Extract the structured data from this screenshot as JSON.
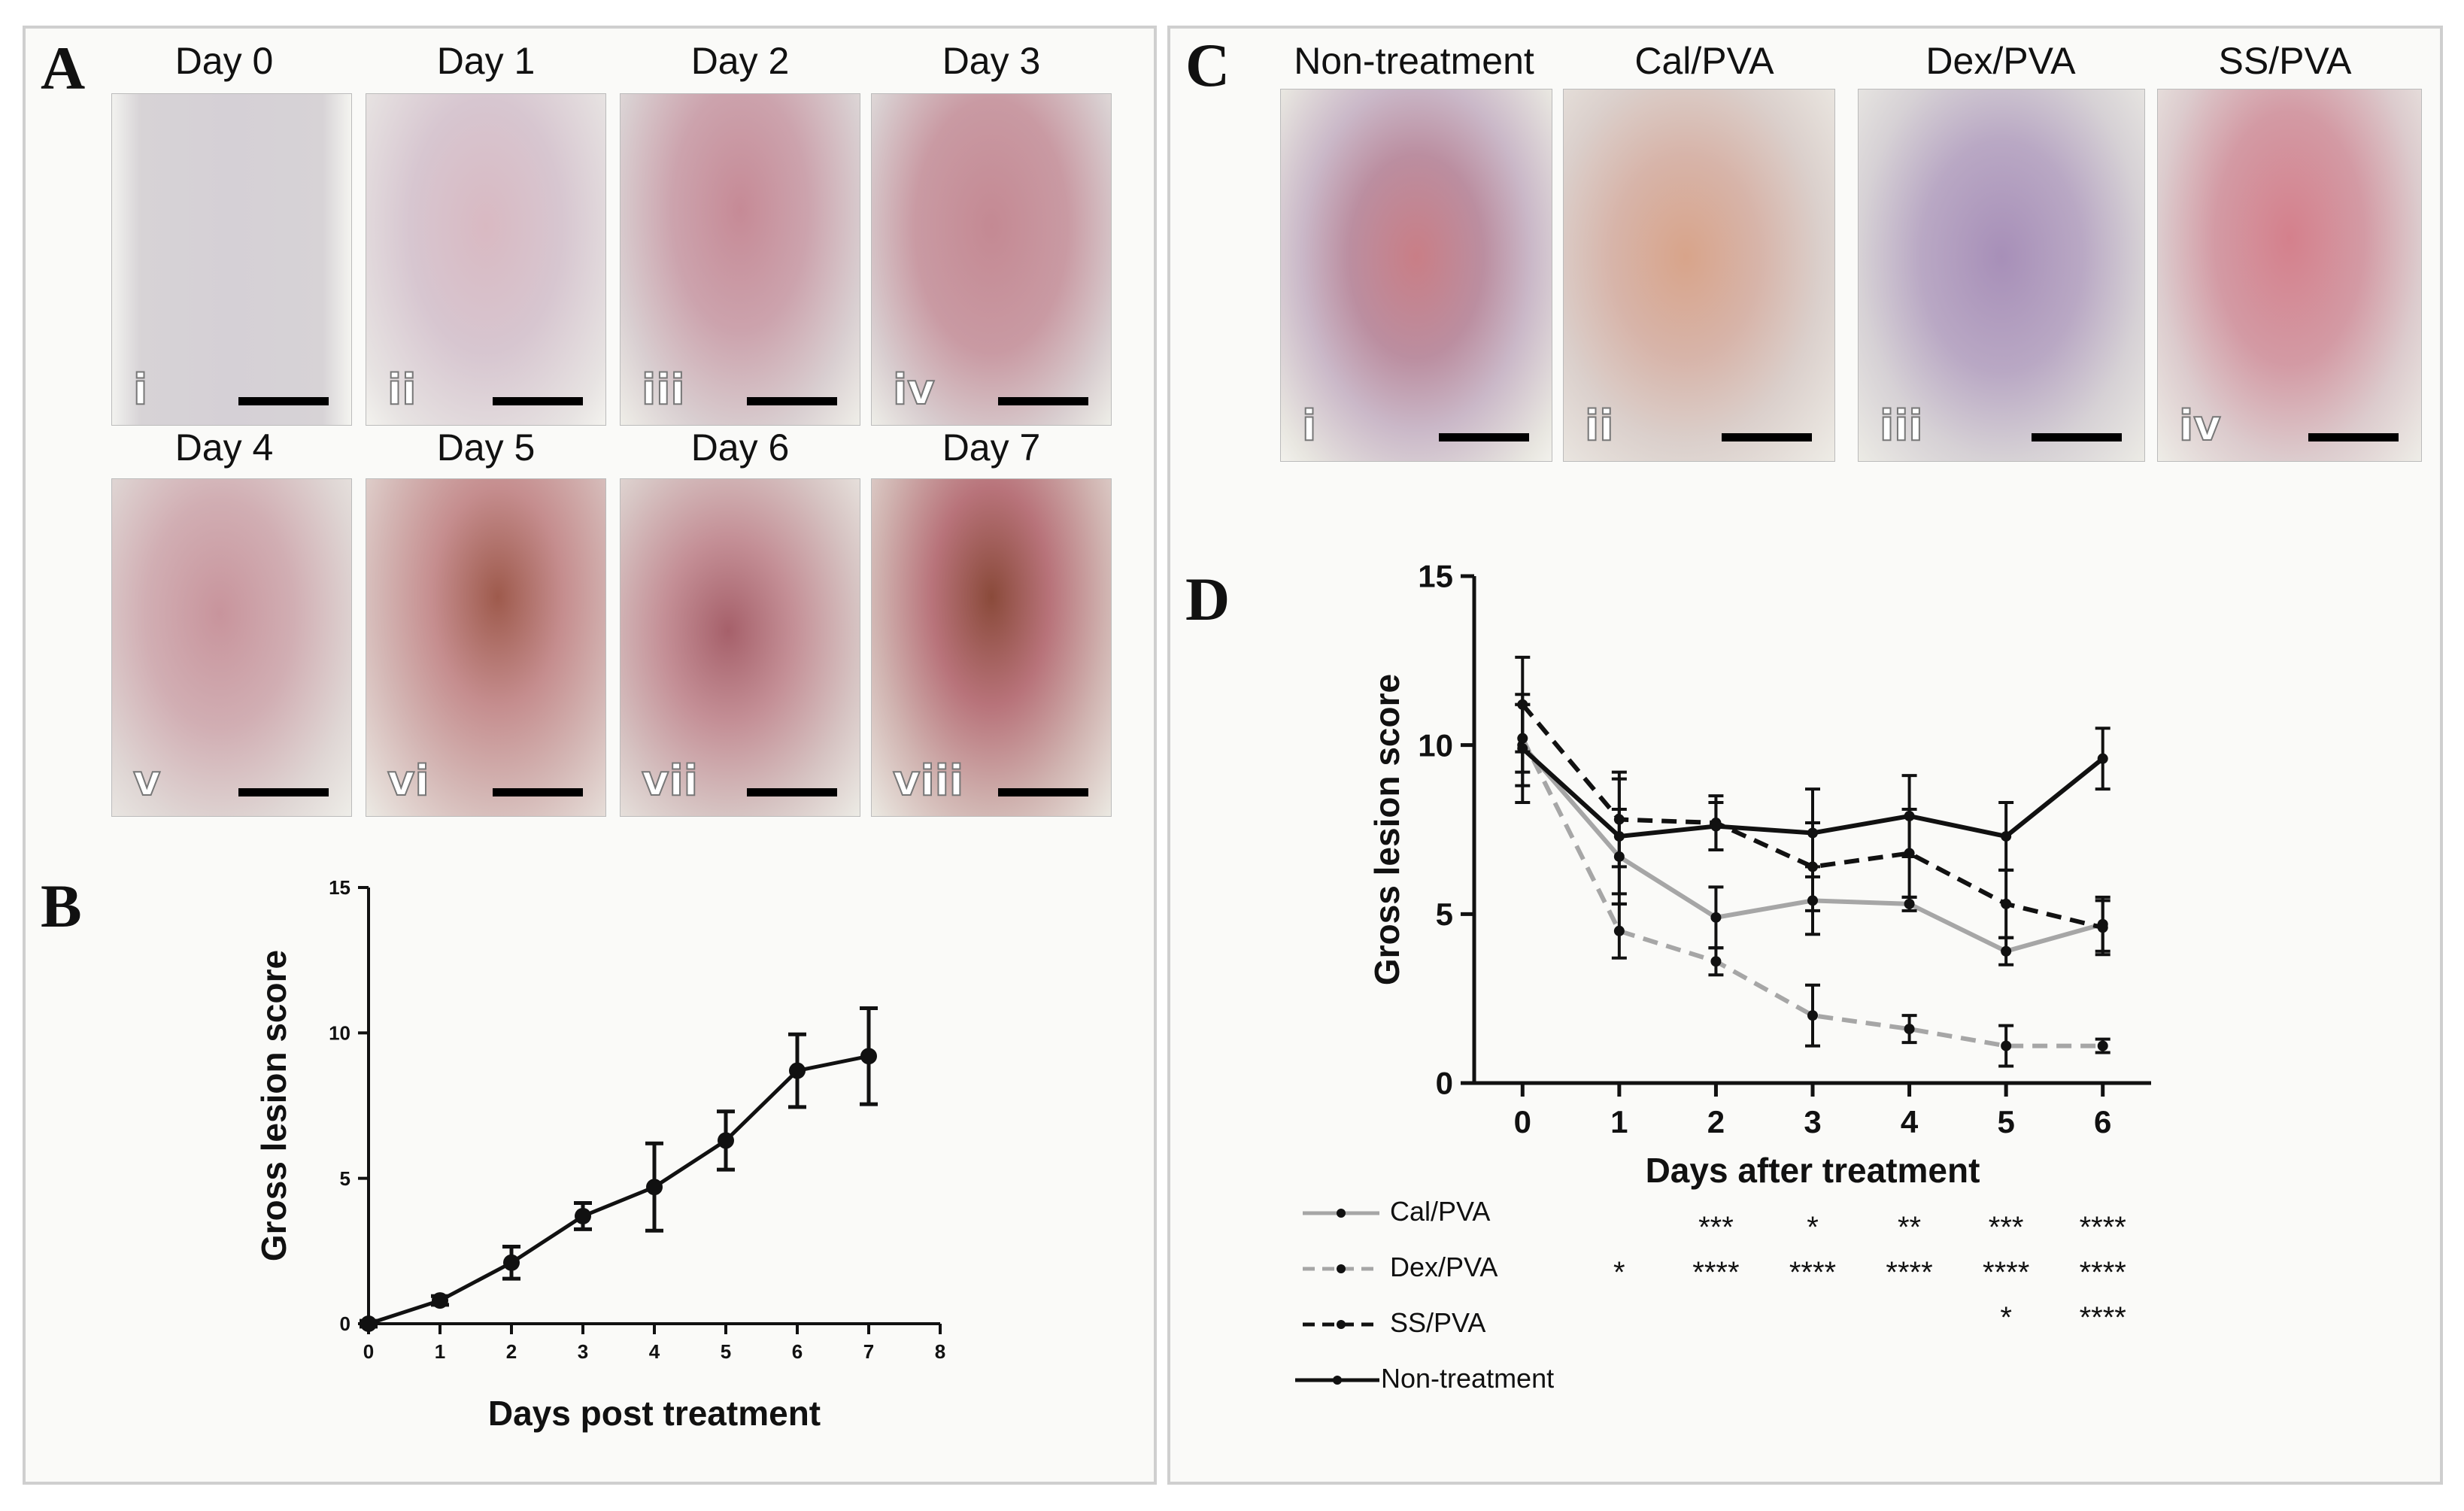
{
  "panels": {
    "A": {
      "letter": "A",
      "photos": [
        {
          "day": "Day 0",
          "roman": "i"
        },
        {
          "day": "Day 1",
          "roman": "ii"
        },
        {
          "day": "Day 2",
          "roman": "iii"
        },
        {
          "day": "Day 3",
          "roman": "iv"
        },
        {
          "day": "Day 4",
          "roman": "v"
        },
        {
          "day": "Day 5",
          "roman": "vi"
        },
        {
          "day": "Day 6",
          "roman": "vii"
        },
        {
          "day": "Day 7",
          "roman": "viii"
        }
      ]
    },
    "B": {
      "letter": "B"
    },
    "C": {
      "letter": "C",
      "photos": [
        {
          "group": "Non-treatment",
          "roman": "i"
        },
        {
          "group": "Cal/PVA",
          "roman": "ii"
        },
        {
          "group": "Dex/PVA",
          "roman": "iii"
        },
        {
          "group": "SS/PVA",
          "roman": "iv"
        }
      ]
    },
    "D": {
      "letter": "D",
      "legend": [
        {
          "label": "Cal/PVA",
          "stars": [
            "",
            "***",
            "*",
            "**",
            "***",
            "****"
          ]
        },
        {
          "label": "Dex/PVA",
          "stars": [
            "*",
            "****",
            "****",
            "****",
            "****",
            "****"
          ]
        },
        {
          "label": "SS/PVA",
          "stars": [
            "",
            "",
            "",
            "",
            "*",
            "****"
          ]
        },
        {
          "label": "Non-treatment",
          "stars": [
            "",
            "",
            "",
            "",
            "",
            ""
          ]
        }
      ]
    }
  },
  "colors": {
    "black": "#111111",
    "gray": "#a6a6a6",
    "frame": "#cfcfcf"
  },
  "chart_data": [
    {
      "id": "B",
      "type": "line",
      "title": "",
      "xlabel": "Days post treatment",
      "ylabel": "Gross lesion score",
      "xlim": [
        0,
        8
      ],
      "ylim": [
        0,
        15
      ],
      "xticks": [
        0,
        1,
        2,
        3,
        4,
        5,
        6,
        7,
        8
      ],
      "yticks": [
        0,
        5,
        10,
        15
      ],
      "series": [
        {
          "name": "Gross lesion score",
          "x": [
            0,
            1,
            2,
            3,
            4,
            5,
            6,
            7
          ],
          "values": [
            0,
            0.8,
            2.1,
            3.7,
            4.7,
            6.3,
            8.7,
            9.2
          ],
          "errors": [
            0.1,
            0.15,
            0.55,
            0.45,
            1.5,
            1.0,
            1.25,
            1.65
          ]
        }
      ]
    },
    {
      "id": "D",
      "type": "line",
      "title": "",
      "xlabel": "Days after treatment",
      "ylabel": "Gross lesion score",
      "xlim": [
        -0.5,
        6.5
      ],
      "ylim": [
        0,
        15
      ],
      "xticks": [
        0,
        1,
        2,
        3,
        4,
        5,
        6
      ],
      "yticks": [
        0,
        5,
        10,
        15
      ],
      "series": [
        {
          "name": "Cal/PVA",
          "style": "solid",
          "color": "#a6a6a6",
          "x": [
            0,
            1,
            2,
            3,
            4,
            5,
            6
          ],
          "values": [
            10.0,
            6.7,
            4.9,
            5.4,
            5.3,
            3.9,
            4.7
          ],
          "errors": [
            1.2,
            1.4,
            0.9,
            1.0,
            0.2,
            0.4,
            0.8
          ]
        },
        {
          "name": "Dex/PVA",
          "style": "dashed",
          "color": "#a6a6a6",
          "x": [
            0,
            1,
            2,
            3,
            4,
            5,
            6
          ],
          "values": [
            10.2,
            4.5,
            3.6,
            2.0,
            1.6,
            1.1,
            1.1
          ],
          "errors": [
            1.0,
            0.8,
            0.4,
            0.9,
            0.4,
            0.6,
            0.2
          ]
        },
        {
          "name": "SS/PVA",
          "style": "dashed",
          "color": "#111111",
          "x": [
            0,
            1,
            2,
            3,
            4,
            5,
            6
          ],
          "values": [
            11.2,
            7.8,
            7.7,
            6.4,
            6.8,
            5.3,
            4.6
          ],
          "errors": [
            1.4,
            1.4,
            0.8,
            1.3,
            1.3,
            1.0,
            0.8
          ]
        },
        {
          "name": "Non-treatment",
          "style": "solid",
          "color": "#111111",
          "x": [
            0,
            1,
            2,
            3,
            4,
            5,
            6
          ],
          "values": [
            9.9,
            7.3,
            7.6,
            7.4,
            7.9,
            7.3,
            9.6
          ],
          "errors": [
            1.6,
            1.7,
            0.7,
            1.3,
            1.2,
            1.0,
            0.9
          ]
        }
      ]
    }
  ]
}
